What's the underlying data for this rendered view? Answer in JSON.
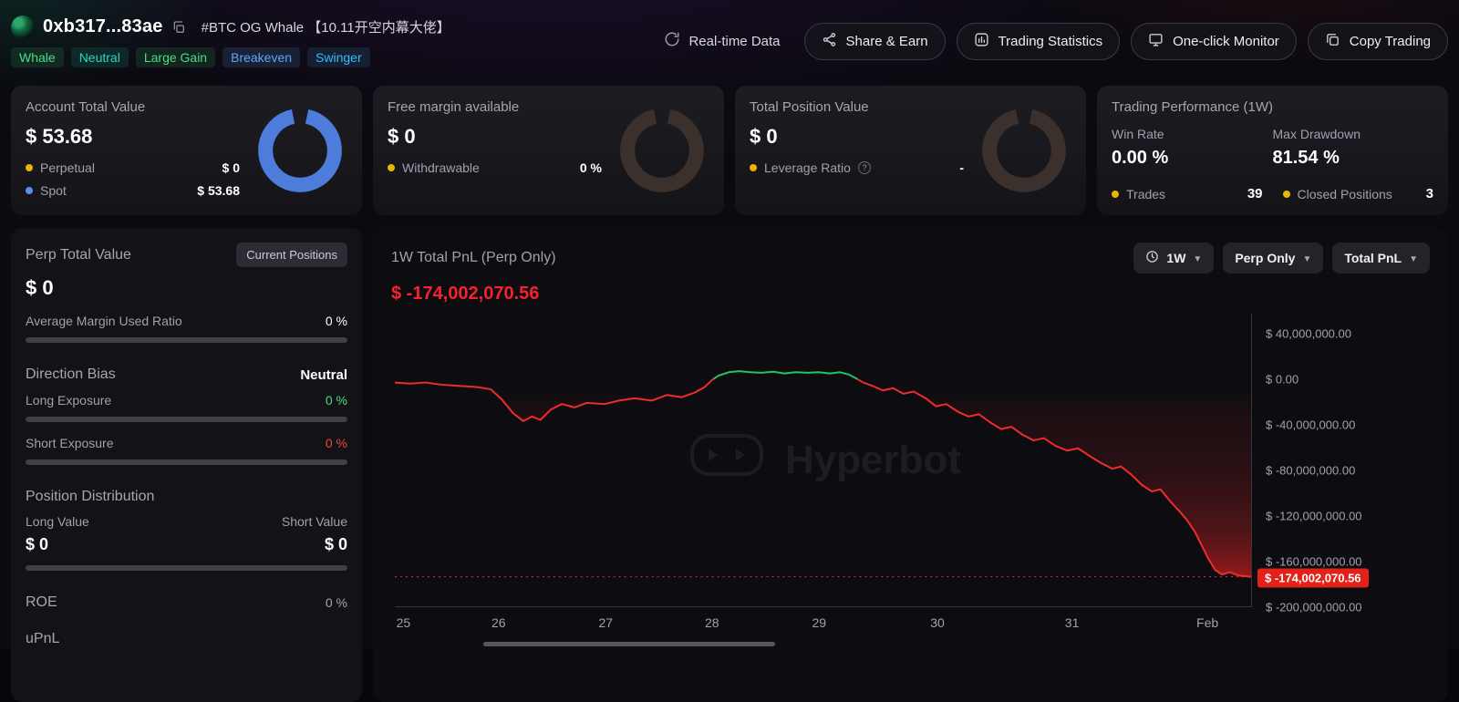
{
  "header": {
    "address": "0xb317...83ae",
    "title_tag": "#BTC OG Whale 【10.11开空内幕大佬】",
    "badges": [
      {
        "label": "Whale",
        "color": "#4ade80",
        "bg": "rgba(74,222,128,0.12)"
      },
      {
        "label": "Neutral",
        "color": "#2dd4bf",
        "bg": "rgba(45,212,191,0.12)"
      },
      {
        "label": "Large Gain",
        "color": "#4ade80",
        "bg": "rgba(74,222,128,0.12)"
      },
      {
        "label": "Breakeven",
        "color": "#60a5fa",
        "bg": "rgba(96,165,250,0.14)"
      },
      {
        "label": "Swinger",
        "color": "#38bdf8",
        "bg": "rgba(56,189,248,0.12)"
      }
    ],
    "realtime_label": "Real-time Data",
    "actions": [
      {
        "label": "Share & Earn"
      },
      {
        "label": "Trading Statistics"
      },
      {
        "label": "One-click Monitor"
      },
      {
        "label": "Copy Trading"
      }
    ]
  },
  "cards": {
    "account": {
      "title": "Account Total Value",
      "value": "$ 53.68",
      "rows": [
        {
          "label": "Perpetual",
          "value": "$ 0",
          "dot": "#eab308"
        },
        {
          "label": "Spot",
          "value": "$ 53.68",
          "dot": "#5b8def"
        }
      ],
      "donut_color": "#4e7cdb"
    },
    "margin": {
      "title": "Free margin available",
      "value": "$ 0",
      "rows": [
        {
          "label": "Withdrawable",
          "value": "0 %",
          "dot": "#eab308"
        }
      ],
      "donut_color": "#3b302c"
    },
    "position": {
      "title": "Total Position Value",
      "value": "$ 0",
      "rows": [
        {
          "label": "Leverage Ratio",
          "value": "-",
          "dot": "#eab308"
        }
      ],
      "donut_color": "#3b302c"
    },
    "performance": {
      "title": "Trading Performance (1W)",
      "stats": [
        {
          "label": "Win Rate",
          "value": "0.00 %"
        },
        {
          "label": "Max Drawdown",
          "value": "81.54 %"
        }
      ],
      "counters": [
        {
          "label": "Trades",
          "value": "39",
          "dot": "#eab308"
        },
        {
          "label": "Closed Positions",
          "value": "3",
          "dot": "#eab308"
        }
      ]
    }
  },
  "perp_panel": {
    "title": "Perp Total Value",
    "button": "Current Positions",
    "value": "$ 0",
    "margin_ratio_label": "Average Margin Used Ratio",
    "margin_ratio_value": "0 %",
    "direction_bias_label": "Direction Bias",
    "direction_bias_value": "Neutral",
    "long_exposure_label": "Long Exposure",
    "long_exposure_value": "0 %",
    "short_exposure_label": "Short Exposure",
    "short_exposure_value": "0 %",
    "distribution_label": "Position Distribution",
    "long_value_label": "Long Value",
    "short_value_label": "Short Value",
    "long_value": "$ 0",
    "short_value": "$ 0",
    "roe_label": "ROE",
    "roe_value": "0 %",
    "upnl_label": "uPnL"
  },
  "chart_panel": {
    "title": "1W Total PnL (Perp Only)",
    "value": "$ -174,002,070.56",
    "controls": [
      {
        "label": "1W"
      },
      {
        "label": "Perp Only"
      },
      {
        "label": "Total PnL"
      }
    ],
    "watermark": "Hyperbot"
  },
  "chart_data": {
    "type": "line",
    "title": "1W Total PnL (Perp Only)",
    "series_name": "Total PnL",
    "values_unit": "millions USD",
    "current_value": -174002070.56,
    "current_value_m": -174.002,
    "current_label": "$ -174,002,070.56",
    "ylim_m": [
      -200,
      57.6
    ],
    "grid": false,
    "legend": "none",
    "colors": {
      "positive": "#22c55e",
      "negative": "#ef2b2b"
    },
    "y_ticks": [
      {
        "value_m": 40,
        "label": "$ 40,000,000.00"
      },
      {
        "value_m": 0,
        "label": "$ 0.00"
      },
      {
        "value_m": -40,
        "label": "$ -40,000,000.00"
      },
      {
        "value_m": -80,
        "label": "$ -80,000,000.00"
      },
      {
        "value_m": -120,
        "label": "$ -120,000,000.00"
      },
      {
        "value_m": -160,
        "label": "$ -160,000,000.00"
      },
      {
        "value_m": -200,
        "label": "$ -200,000,000.00"
      }
    ],
    "x_ticks": [
      {
        "pos": 0.01,
        "label": "25"
      },
      {
        "pos": 0.121,
        "label": "26"
      },
      {
        "pos": 0.246,
        "label": "27"
      },
      {
        "pos": 0.37,
        "label": "28"
      },
      {
        "pos": 0.495,
        "label": "29"
      },
      {
        "pos": 0.633,
        "label": "30"
      },
      {
        "pos": 0.79,
        "label": "31"
      },
      {
        "pos": 0.948,
        "label": "Feb"
      }
    ],
    "series": [
      {
        "name": "Total PnL",
        "points": [
          [
            0.0,
            -3
          ],
          [
            0.018,
            -4
          ],
          [
            0.036,
            -3
          ],
          [
            0.055,
            -5
          ],
          [
            0.075,
            -6
          ],
          [
            0.095,
            -7
          ],
          [
            0.112,
            -9
          ],
          [
            0.125,
            -18
          ],
          [
            0.138,
            -30
          ],
          [
            0.15,
            -37
          ],
          [
            0.16,
            -33
          ],
          [
            0.17,
            -36
          ],
          [
            0.182,
            -27
          ],
          [
            0.195,
            -22
          ],
          [
            0.21,
            -25
          ],
          [
            0.224,
            -21
          ],
          [
            0.245,
            -22
          ],
          [
            0.262,
            -19
          ],
          [
            0.28,
            -17
          ],
          [
            0.3,
            -19
          ],
          [
            0.318,
            -14
          ],
          [
            0.335,
            -16
          ],
          [
            0.35,
            -12
          ],
          [
            0.362,
            -7
          ],
          [
            0.37,
            -1
          ],
          [
            0.378,
            3
          ],
          [
            0.39,
            6
          ],
          [
            0.402,
            7
          ],
          [
            0.415,
            6
          ],
          [
            0.428,
            5.5
          ],
          [
            0.442,
            6.5
          ],
          [
            0.455,
            5
          ],
          [
            0.468,
            6
          ],
          [
            0.482,
            5.5
          ],
          [
            0.495,
            6
          ],
          [
            0.508,
            5
          ],
          [
            0.52,
            6
          ],
          [
            0.53,
            4
          ],
          [
            0.538,
            1
          ],
          [
            0.547,
            -3
          ],
          [
            0.558,
            -6
          ],
          [
            0.57,
            -10
          ],
          [
            0.582,
            -8
          ],
          [
            0.594,
            -13
          ],
          [
            0.606,
            -11
          ],
          [
            0.62,
            -17
          ],
          [
            0.632,
            -24
          ],
          [
            0.644,
            -22
          ],
          [
            0.658,
            -29
          ],
          [
            0.67,
            -33
          ],
          [
            0.682,
            -31
          ],
          [
            0.695,
            -38
          ],
          [
            0.708,
            -44
          ],
          [
            0.72,
            -42
          ],
          [
            0.733,
            -49
          ],
          [
            0.746,
            -54
          ],
          [
            0.758,
            -52
          ],
          [
            0.772,
            -59
          ],
          [
            0.785,
            -63
          ],
          [
            0.798,
            -61
          ],
          [
            0.812,
            -68
          ],
          [
            0.825,
            -74
          ],
          [
            0.838,
            -79
          ],
          [
            0.848,
            -77
          ],
          [
            0.86,
            -84
          ],
          [
            0.872,
            -93
          ],
          [
            0.884,
            -99
          ],
          [
            0.894,
            -97
          ],
          [
            0.906,
            -108
          ],
          [
            0.916,
            -116
          ],
          [
            0.925,
            -124
          ],
          [
            0.934,
            -134
          ],
          [
            0.942,
            -146
          ],
          [
            0.95,
            -158
          ],
          [
            0.958,
            -168
          ],
          [
            0.966,
            -172
          ],
          [
            0.975,
            -170
          ],
          [
            0.985,
            -173
          ],
          [
            1.0,
            -174
          ]
        ]
      }
    ]
  }
}
